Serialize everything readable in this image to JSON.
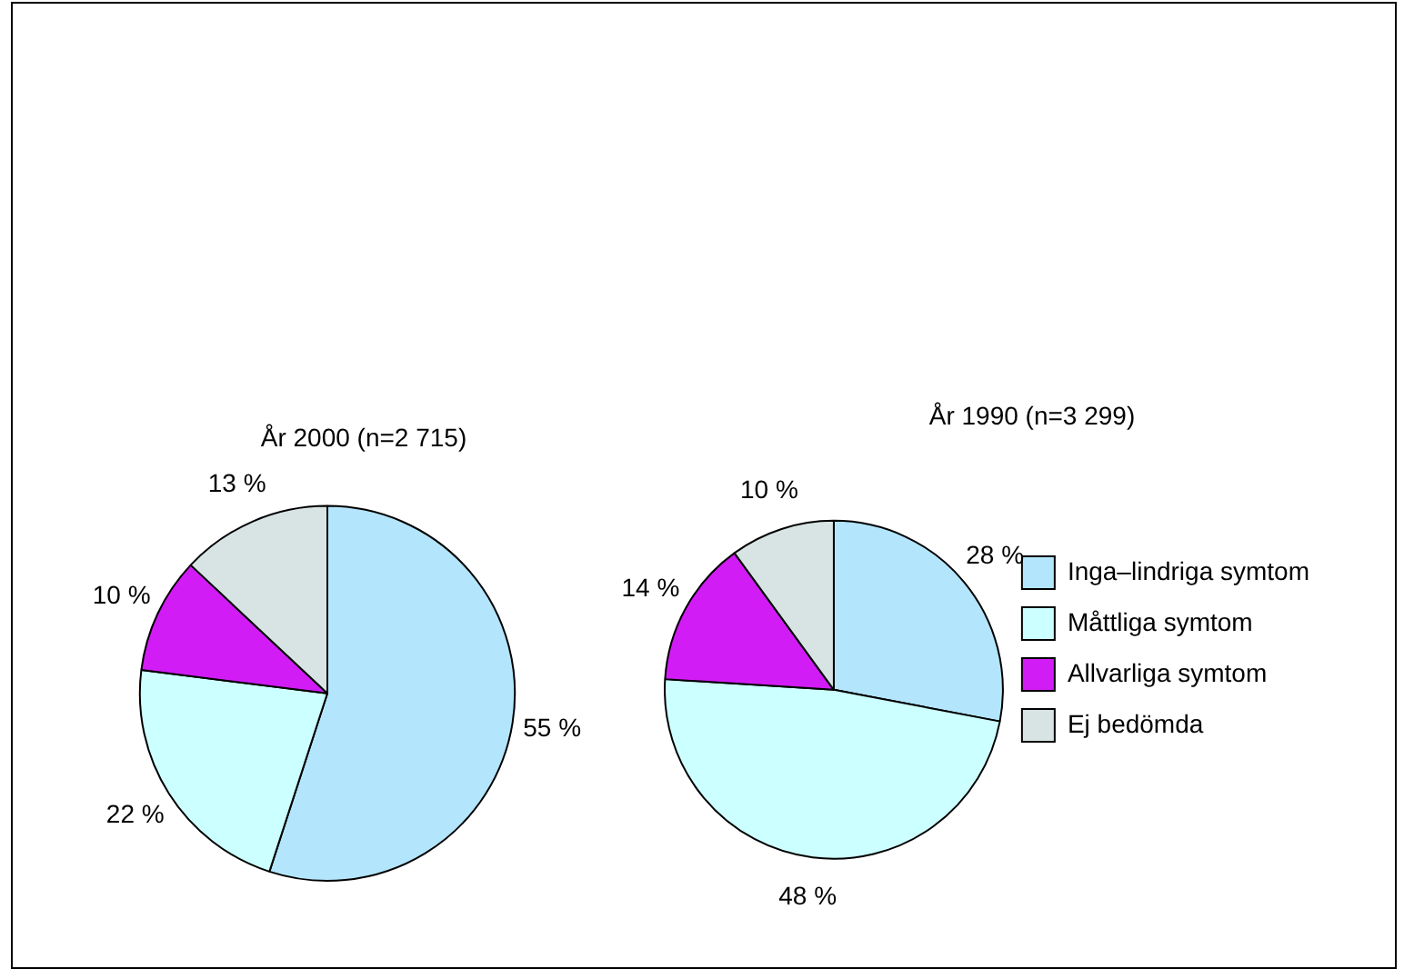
{
  "chart_data": {
    "type": "pie",
    "categories": [
      "Inga–lindriga symtom",
      "Måttliga symtom",
      "Allvarliga symtom",
      "Ej bedömda"
    ],
    "colors": [
      "#b3e5fc",
      "#ccffff",
      "#d21cf5",
      "#d8e4e4"
    ],
    "legend": "right",
    "series": [
      {
        "name": "År 2000 (n=2 715)",
        "values": [
          55,
          22,
          10,
          13
        ],
        "value_labels": [
          "55 %",
          "22 %",
          "10 %",
          "13 %"
        ]
      },
      {
        "name": "År 1990 (n=3 299)",
        "values": [
          28,
          48,
          14,
          10
        ],
        "value_labels": [
          "28 %",
          "48 %",
          "14 %",
          "10 %"
        ]
      }
    ]
  }
}
